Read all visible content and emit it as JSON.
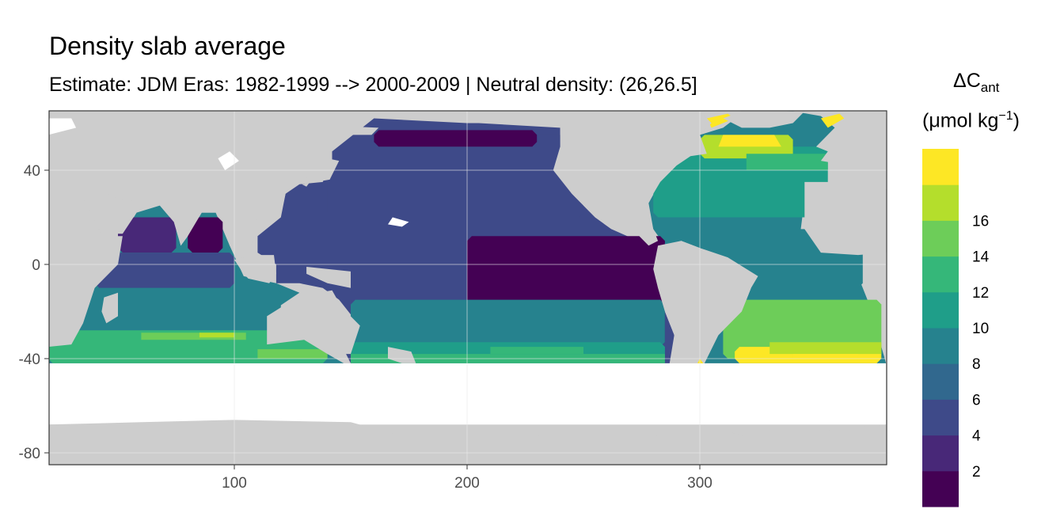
{
  "title": "Density slab average",
  "subtitle": "Estimate: JDM Eras: 1982-1999 --> 2000-2009 | Neutral density: (26,26.5]",
  "colors": {
    "land": "#cdcdcd",
    "nodata": "#ffffff",
    "grid": "#ebebeb",
    "border": "#333333",
    "bins": [
      "#440154",
      "#482878",
      "#3e4a89",
      "#31688e",
      "#26828e",
      "#1f9e89",
      "#35b779",
      "#6dcd59",
      "#b4de2c",
      "#fde725"
    ]
  },
  "chart_data": {
    "type": "heatmap",
    "title": "Density slab average",
    "subtitle": "Estimate: JDM Eras: 1982-1999 --> 2000-2009 | Neutral density: (26,26.5]",
    "xlim": [
      20,
      380
    ],
    "ylim": [
      -85,
      65
    ],
    "x_ticks": [
      "100",
      "200",
      "300"
    ],
    "y_ticks": [
      "40",
      "0",
      "-40",
      "-80"
    ],
    "xlabel": "",
    "ylabel": "",
    "grid": true,
    "legend": {
      "position": "right",
      "title_main": "ΔC",
      "title_sub": "ant",
      "title_units": "(μmol kg",
      "title_units_sup": "−1",
      "title_units_close": ")",
      "labels": [
        "2",
        "4",
        "6",
        "8",
        "10",
        "12",
        "14",
        "16"
      ],
      "bin_count": 10
    },
    "regions": [
      {
        "name": "equatorial-east-pacific",
        "x": [
          200,
          285
        ],
        "y": [
          -35,
          12
        ],
        "value_bin": 0
      },
      {
        "name": "north-pacific-gyre",
        "x": [
          140,
          250
        ],
        "y": [
          20,
          55
        ],
        "value_bin": 2
      },
      {
        "name": "north-pacific-subpolar",
        "x": [
          160,
          230
        ],
        "y": [
          50,
          57
        ],
        "value_bin": 0
      },
      {
        "name": "arabian-sea",
        "x": [
          50,
          75
        ],
        "y": [
          5,
          20
        ],
        "value_bin": 1
      },
      {
        "name": "bay-of-bengal",
        "x": [
          80,
          95
        ],
        "y": [
          5,
          20
        ],
        "value_bin": 0
      },
      {
        "name": "north-indian",
        "x": [
          40,
          100
        ],
        "y": [
          -10,
          5
        ],
        "value_bin": 2
      },
      {
        "name": "south-indian-mid",
        "x": [
          30,
          120
        ],
        "y": [
          -30,
          -10
        ],
        "value_bin": 4
      },
      {
        "name": "south-indian-band",
        "x": [
          20,
          140
        ],
        "y": [
          -42,
          -28
        ],
        "value_bin": 6
      },
      {
        "name": "south-pacific-mid",
        "x": [
          150,
          285
        ],
        "y": [
          -35,
          -15
        ],
        "value_bin": 4
      },
      {
        "name": "south-pacific-band",
        "x": [
          150,
          285
        ],
        "y": [
          -42,
          -33
        ],
        "value_bin": 5
      },
      {
        "name": "north-atlantic",
        "x": [
          280,
          355
        ],
        "y": [
          20,
          50
        ],
        "value_bin": 5
      },
      {
        "name": "subpolar-north-atlantic",
        "x": [
          300,
          340
        ],
        "y": [
          45,
          55
        ],
        "value_bin": 8
      },
      {
        "name": "equatorial-atlantic",
        "x": [
          300,
          370
        ],
        "y": [
          -10,
          15
        ],
        "value_bin": 4
      },
      {
        "name": "south-atlantic",
        "x": [
          310,
          378
        ],
        "y": [
          -40,
          -15
        ],
        "value_bin": 7
      },
      {
        "name": "south-atlantic-band",
        "x": [
          315,
          378
        ],
        "y": [
          -42,
          -35
        ],
        "value_bin": 9
      }
    ]
  },
  "legend_labels": [
    "2",
    "4",
    "6",
    "8",
    "10",
    "12",
    "14",
    "16"
  ]
}
